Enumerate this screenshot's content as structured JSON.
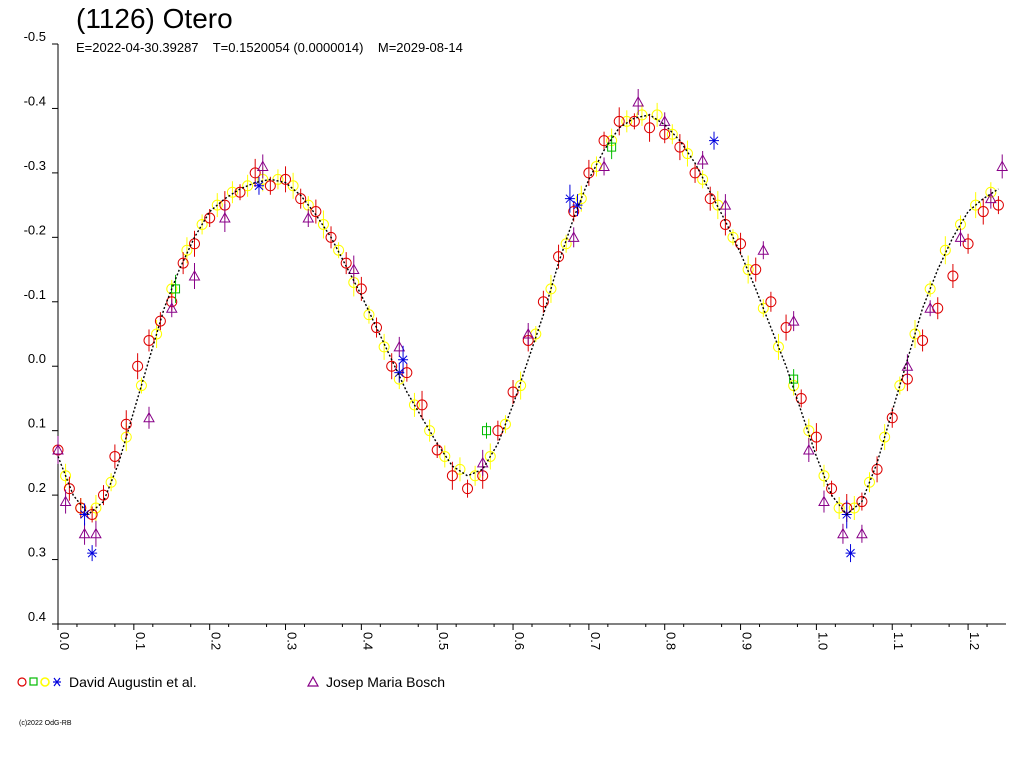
{
  "title": "(1126) Otero",
  "subtitle": "E=2022-04-30.39287    T=0.1520054 (0.0000014)    M=2029-08-14",
  "copyright": "(c)2022 OdG-RB",
  "colors": {
    "red": "#dd0000",
    "green": "#00bb00",
    "yellow": "#ffff00",
    "blue": "#0000dd",
    "purple": "#880088",
    "fit": "#000000",
    "axis": "#000000"
  },
  "legend": [
    {
      "label": "David Augustin et al.",
      "markers": [
        "circle-red",
        "square-green",
        "circle-yellow",
        "star-blue"
      ]
    },
    {
      "label": "Josep Maria Bosch",
      "markers": [
        "triangle-purple"
      ]
    }
  ],
  "chart_data": {
    "type": "scatter",
    "title": "(1126) Otero",
    "xlabel": "",
    "ylabel": "",
    "xlim": [
      0.0,
      1.25
    ],
    "ylim": [
      -0.5,
      0.4
    ],
    "y_inverted": true,
    "grid": false,
    "x_ticks": [
      "0.0",
      "0.1",
      "0.2",
      "0.3",
      "0.4",
      "0.5",
      "0.6",
      "0.7",
      "0.8",
      "0.9",
      "1.0",
      "1.1",
      "1.2"
    ],
    "y_ticks": [
      "-0.5",
      "-0.4",
      "-0.3",
      "-0.2",
      "-0.1",
      "0.0",
      "0.1",
      "0.2",
      "0.3",
      "0.4"
    ],
    "fit_curve": {
      "x": [
        0.0,
        0.02,
        0.04,
        0.06,
        0.08,
        0.1,
        0.12,
        0.14,
        0.16,
        0.18,
        0.2,
        0.22,
        0.24,
        0.26,
        0.28,
        0.3,
        0.32,
        0.34,
        0.36,
        0.38,
        0.4,
        0.42,
        0.44,
        0.46,
        0.48,
        0.5,
        0.52,
        0.54,
        0.56,
        0.58,
        0.6,
        0.62,
        0.64,
        0.66,
        0.68,
        0.7,
        0.72,
        0.74,
        0.76,
        0.78,
        0.8,
        0.82,
        0.84,
        0.86,
        0.88,
        0.9,
        0.92,
        0.94,
        0.96,
        0.98,
        1.0,
        1.02,
        1.04,
        1.06,
        1.08,
        1.1,
        1.12,
        1.14,
        1.16,
        1.18,
        1.2,
        1.22,
        1.24
      ],
      "y": [
        0.14,
        0.2,
        0.23,
        0.21,
        0.15,
        0.07,
        -0.01,
        -0.09,
        -0.15,
        -0.2,
        -0.24,
        -0.26,
        -0.275,
        -0.285,
        -0.29,
        -0.285,
        -0.265,
        -0.235,
        -0.2,
        -0.155,
        -0.11,
        -0.06,
        -0.01,
        0.04,
        0.08,
        0.12,
        0.155,
        0.17,
        0.16,
        0.12,
        0.06,
        -0.01,
        -0.08,
        -0.16,
        -0.23,
        -0.29,
        -0.335,
        -0.37,
        -0.385,
        -0.39,
        -0.375,
        -0.35,
        -0.315,
        -0.27,
        -0.225,
        -0.175,
        -0.12,
        -0.06,
        0.0,
        0.07,
        0.14,
        0.2,
        0.23,
        0.21,
        0.15,
        0.07,
        -0.01,
        -0.09,
        -0.15,
        -0.2,
        -0.24,
        -0.26,
        -0.275
      ]
    },
    "series": [
      {
        "name": "David Augustin et al.",
        "marker": "circle",
        "color": "red",
        "x": [
          0.0,
          0.015,
          0.03,
          0.045,
          0.06,
          0.075,
          0.09,
          0.105,
          0.12,
          0.135,
          0.15,
          0.165,
          0.18,
          0.2,
          0.22,
          0.24,
          0.26,
          0.28,
          0.3,
          0.32,
          0.34,
          0.36,
          0.38,
          0.4,
          0.42,
          0.44,
          0.46,
          0.48,
          0.5,
          0.52,
          0.54,
          0.56,
          0.58,
          0.6,
          0.62,
          0.64,
          0.66,
          0.68,
          0.7,
          0.72,
          0.74,
          0.76,
          0.78,
          0.8,
          0.82,
          0.84,
          0.86,
          0.88,
          0.9,
          0.92,
          0.94,
          0.96,
          0.98,
          1.0,
          1.02,
          1.04,
          1.06,
          1.08,
          1.1,
          1.12,
          1.14,
          1.16,
          1.18,
          1.2,
          1.22,
          1.24
        ],
        "y": [
          0.13,
          0.19,
          0.22,
          0.23,
          0.2,
          0.14,
          0.09,
          0.0,
          -0.04,
          -0.07,
          -0.1,
          -0.16,
          -0.19,
          -0.23,
          -0.25,
          -0.27,
          -0.3,
          -0.28,
          -0.29,
          -0.26,
          -0.24,
          -0.2,
          -0.16,
          -0.12,
          -0.06,
          0.0,
          0.01,
          0.06,
          0.13,
          0.17,
          0.19,
          0.17,
          0.1,
          0.04,
          -0.04,
          -0.1,
          -0.17,
          -0.24,
          -0.3,
          -0.35,
          -0.38,
          -0.38,
          -0.37,
          -0.36,
          -0.34,
          -0.3,
          -0.26,
          -0.22,
          -0.19,
          -0.15,
          -0.1,
          -0.06,
          0.05,
          0.11,
          0.19,
          0.22,
          0.21,
          0.16,
          0.08,
          0.02,
          -0.04,
          -0.09,
          -0.14,
          -0.19,
          -0.24,
          -0.25
        ]
      },
      {
        "name": "Josep Maria Bosch",
        "marker": "triangle",
        "color": "purple",
        "x": [
          0.0,
          0.01,
          0.035,
          0.05,
          0.12,
          0.15,
          0.18,
          0.22,
          0.27,
          0.33,
          0.39,
          0.45,
          0.56,
          0.62,
          0.68,
          0.72,
          0.765,
          0.8,
          0.85,
          0.88,
          0.93,
          0.97,
          0.99,
          1.01,
          1.035,
          1.06,
          1.12,
          1.15,
          1.19,
          1.23,
          1.245
        ],
        "y": [
          0.13,
          0.21,
          0.26,
          0.26,
          0.08,
          -0.09,
          -0.14,
          -0.23,
          -0.31,
          -0.23,
          -0.15,
          -0.03,
          0.15,
          -0.05,
          -0.2,
          -0.31,
          -0.41,
          -0.38,
          -0.32,
          -0.25,
          -0.18,
          -0.07,
          0.13,
          0.21,
          0.26,
          0.26,
          0.0,
          -0.09,
          -0.2,
          -0.26,
          -0.31
        ]
      },
      {
        "name": "",
        "marker": "square",
        "color": "green",
        "x": [
          0.155,
          0.565,
          0.73,
          0.97
        ],
        "y": [
          -0.12,
          0.1,
          -0.34,
          0.02
        ]
      },
      {
        "name": "",
        "marker": "star",
        "color": "blue",
        "x": [
          0.035,
          0.045,
          0.265,
          0.45,
          0.455,
          0.675,
          0.685,
          0.865,
          1.04,
          1.045
        ],
        "y": [
          0.23,
          0.29,
          -0.28,
          0.01,
          -0.01,
          -0.26,
          -0.25,
          -0.35,
          0.23,
          0.29
        ]
      }
    ],
    "dense_points": {
      "color": "yellow",
      "marker": "circle",
      "x": [
        0.01,
        0.03,
        0.05,
        0.07,
        0.09,
        0.11,
        0.13,
        0.15,
        0.17,
        0.19,
        0.21,
        0.23,
        0.25,
        0.27,
        0.29,
        0.31,
        0.33,
        0.35,
        0.37,
        0.39,
        0.41,
        0.43,
        0.45,
        0.47,
        0.49,
        0.51,
        0.53,
        0.55,
        0.57,
        0.59,
        0.61,
        0.63,
        0.65,
        0.67,
        0.69,
        0.71,
        0.73,
        0.75,
        0.77,
        0.79,
        0.81,
        0.83,
        0.85,
        0.87,
        0.89,
        0.91,
        0.93,
        0.95,
        0.97,
        0.99,
        1.01,
        1.03,
        1.05,
        1.07,
        1.09,
        1.11,
        1.13,
        1.15,
        1.17,
        1.19,
        1.21,
        1.23
      ],
      "y": [
        0.17,
        0.22,
        0.22,
        0.18,
        0.11,
        0.03,
        -0.05,
        -0.12,
        -0.18,
        -0.22,
        -0.25,
        -0.27,
        -0.28,
        -0.29,
        -0.29,
        -0.28,
        -0.25,
        -0.22,
        -0.18,
        -0.13,
        -0.08,
        -0.03,
        0.02,
        0.06,
        0.1,
        0.14,
        0.16,
        0.17,
        0.14,
        0.09,
        0.03,
        -0.05,
        -0.12,
        -0.19,
        -0.26,
        -0.31,
        -0.35,
        -0.38,
        -0.39,
        -0.39,
        -0.36,
        -0.33,
        -0.29,
        -0.25,
        -0.2,
        -0.15,
        -0.09,
        -0.03,
        0.03,
        0.1,
        0.17,
        0.22,
        0.22,
        0.18,
        0.11,
        0.03,
        -0.05,
        -0.12,
        -0.18,
        -0.22,
        -0.25,
        -0.27
      ]
    }
  }
}
